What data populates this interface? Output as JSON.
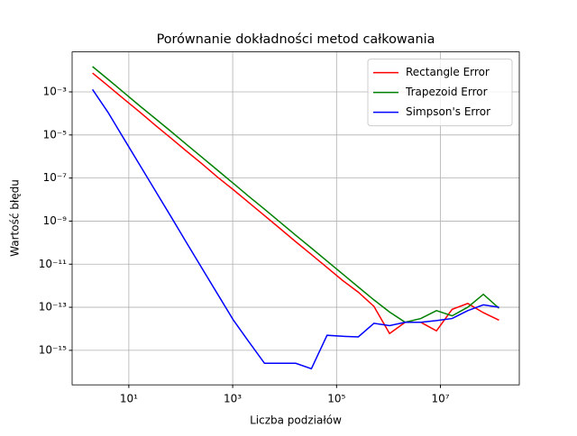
{
  "chart_data": {
    "type": "line",
    "title": "Porównanie dokładności metod całkowania",
    "xlabel": "Liczba podziałów",
    "ylabel": "Wartość błędu",
    "x": [
      2,
      4,
      8,
      16,
      32,
      64,
      128,
      256,
      512,
      1024,
      2048,
      4096,
      8192,
      16384,
      32768,
      65536,
      131072,
      262144,
      524288,
      1048576,
      2097152,
      4194304,
      8388608,
      16777216,
      33554432,
      67108864,
      134217728
    ],
    "series": [
      {
        "name": "Rectangle Error",
        "color": "#ff0000",
        "values": [
          0.0075,
          0.0019,
          0.00047,
          0.00012,
          2.9e-05,
          7.3e-06,
          1.8e-06,
          4.6e-07,
          1.1e-07,
          2.9e-08,
          7.2e-09,
          1.8e-09,
          4.5e-10,
          1.1e-10,
          2.8e-11,
          7e-12,
          1.75e-12,
          5e-13,
          1.1e-13,
          6e-15,
          2e-14,
          2e-14,
          8e-15,
          8e-14,
          1.5e-13,
          5.6e-14,
          2.5e-14
        ]
      },
      {
        "name": "Trapezoid Error",
        "color": "#008000",
        "values": [
          0.015,
          0.0038,
          0.00094,
          0.00023,
          5.9e-05,
          1.5e-05,
          3.7e-06,
          9.2e-07,
          2.3e-07,
          5.7e-08,
          1.4e-08,
          3.6e-09,
          8.9e-10,
          2.2e-10,
          5.6e-11,
          1.4e-11,
          3.5e-12,
          8.7e-13,
          2.2e-13,
          6e-14,
          2e-14,
          3e-14,
          7e-14,
          4e-14,
          1e-13,
          4e-13,
          9e-14
        ]
      },
      {
        "name": "Simpson's Error",
        "color": "#0000ff",
        "values": [
          0.0013,
          0.00011,
          6.8e-06,
          4.3e-07,
          2.7e-08,
          1.7e-09,
          1.04e-10,
          6.5e-12,
          4.1e-13,
          2.6e-14,
          2.5e-15,
          2.5e-16,
          2.5e-16,
          2.5e-16,
          1.4e-16,
          5e-15,
          4.5e-15,
          4.2e-15,
          1.8e-14,
          1.4e-14,
          2e-14,
          2e-14,
          2.4e-14,
          3e-14,
          7e-14,
          1.3e-13,
          1e-13
        ]
      }
    ],
    "xscale": "log",
    "yscale": "log",
    "xlim": [
      0.81,
      330000000.0
    ],
    "ylim": [
      2.5e-17,
      0.072
    ],
    "xticks": [
      {
        "value": 10,
        "label": "10¹"
      },
      {
        "value": 1000,
        "label": "10³"
      },
      {
        "value": 100000,
        "label": "10⁵"
      },
      {
        "value": 10000000,
        "label": "10⁷"
      }
    ],
    "yticks": [
      {
        "value": 1e-15,
        "label": "10⁻¹⁵"
      },
      {
        "value": 1e-13,
        "label": "10⁻¹³"
      },
      {
        "value": 1e-11,
        "label": "10⁻¹¹"
      },
      {
        "value": 1e-09,
        "label": "10⁻⁹"
      },
      {
        "value": 1e-07,
        "label": "10⁻⁷"
      },
      {
        "value": 1e-05,
        "label": "10⁻⁵"
      },
      {
        "value": 0.001,
        "label": "10⁻³"
      }
    ],
    "grid": true,
    "legend": "upper right"
  }
}
